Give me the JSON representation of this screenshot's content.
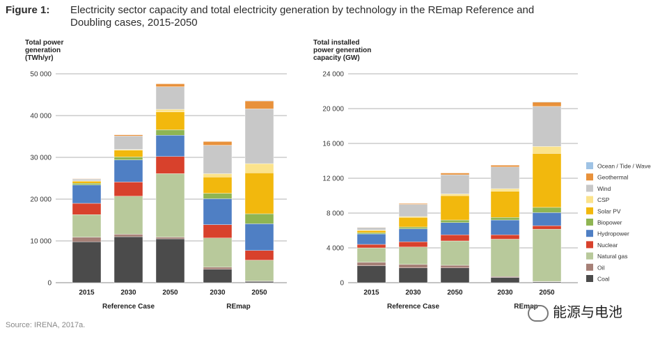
{
  "figure": {
    "label": "Figure 1:",
    "title": "Electricity sector capacity and total electricity generation by technology in the REmap Reference and Doubling cases, 2015-2050",
    "source": "Source: IRENA, 2017a."
  },
  "watermark": "能源与电池",
  "legend": [
    {
      "name": "Ocean / Tide / Wave",
      "color": "#9fc3e5"
    },
    {
      "name": "Geothermal",
      "color": "#e8913b"
    },
    {
      "name": "Wind",
      "color": "#c8c8c8"
    },
    {
      "name": "CSP",
      "color": "#fbe38c"
    },
    {
      "name": "Solar PV",
      "color": "#f2b80d"
    },
    {
      "name": "Biopower",
      "color": "#8fb553"
    },
    {
      "name": "Hydropower",
      "color": "#4f7fc4"
    },
    {
      "name": "Nuclear",
      "color": "#d8412c"
    },
    {
      "name": "Natural gas",
      "color": "#b8c99b"
    },
    {
      "name": "Oil",
      "color": "#a68077"
    },
    {
      "name": "Coal",
      "color": "#4b4b4b"
    }
  ],
  "chart_data": [
    {
      "type": "bar",
      "stacked": true,
      "ylabel": "Total power generation (TWh/yr)",
      "ylabel_lines": [
        "Total power",
        "generation",
        "(TWh/yr)"
      ],
      "ylim": [
        0,
        50000
      ],
      "yticks": [
        0,
        10000,
        20000,
        30000,
        40000,
        50000
      ],
      "ytick_labels": [
        "0",
        "10 000",
        "20 000",
        "30 000",
        "40 000",
        "50 000"
      ],
      "grid": true,
      "categories": [
        "2015",
        "2030",
        "2050",
        "2030",
        "2050"
      ],
      "groups": [
        {
          "name": "Reference Case",
          "categories": [
            0,
            1,
            2
          ]
        },
        {
          "name": "REmap",
          "categories": [
            3,
            4
          ]
        }
      ],
      "series": [
        {
          "name": "Coal",
          "values": [
            9800,
            11000,
            10500,
            3200,
            300
          ]
        },
        {
          "name": "Oil",
          "values": [
            1100,
            600,
            400,
            500,
            100
          ]
        },
        {
          "name": "Natural gas",
          "values": [
            5400,
            9100,
            15200,
            7000,
            5000
          ]
        },
        {
          "name": "Nuclear",
          "values": [
            2700,
            3400,
            4100,
            3200,
            2300
          ]
        },
        {
          "name": "Hydropower",
          "values": [
            4400,
            5300,
            5100,
            6200,
            6400
          ]
        },
        {
          "name": "Biopower",
          "values": [
            400,
            700,
            1300,
            1300,
            2400
          ]
        },
        {
          "name": "Solar PV",
          "values": [
            500,
            1600,
            4300,
            3900,
            9800
          ]
        },
        {
          "name": "CSP",
          "values": [
            100,
            200,
            600,
            800,
            2200
          ]
        },
        {
          "name": "Wind",
          "values": [
            400,
            3200,
            5400,
            6800,
            13100
          ]
        },
        {
          "name": "Geothermal",
          "values": [
            100,
            300,
            700,
            900,
            1900
          ]
        },
        {
          "name": "Ocean / Tide / Wave",
          "values": [
            0,
            0,
            0,
            0,
            100
          ]
        }
      ]
    },
    {
      "type": "bar",
      "stacked": true,
      "ylabel": "Total installed power generation capacity (GW)",
      "ylabel_lines": [
        "Total installed",
        "power generation",
        "capacity (GW)"
      ],
      "ylim": [
        0,
        24000
      ],
      "yticks": [
        0,
        4000,
        8000,
        12000,
        16000,
        20000,
        24000
      ],
      "ytick_labels": [
        "0",
        "4 000",
        "8 000",
        "12 000",
        "16 000",
        "20 000",
        "24 000"
      ],
      "grid": true,
      "categories": [
        "2015",
        "2030",
        "2050",
        "2030",
        "2050"
      ],
      "groups": [
        {
          "name": "Reference Case",
          "categories": [
            0,
            1,
            2
          ]
        },
        {
          "name": "REmap",
          "categories": [
            3,
            4
          ]
        }
      ],
      "series": [
        {
          "name": "Coal",
          "values": [
            1950,
            1700,
            1700,
            600,
            100
          ]
        },
        {
          "name": "Oil",
          "values": [
            400,
            400,
            300,
            100,
            50
          ]
        },
        {
          "name": "Natural gas",
          "values": [
            1650,
            2000,
            2800,
            4300,
            6000
          ]
        },
        {
          "name": "Nuclear",
          "values": [
            400,
            600,
            700,
            500,
            400
          ]
        },
        {
          "name": "Hydropower",
          "values": [
            1200,
            1500,
            1400,
            1700,
            1500
          ]
        },
        {
          "name": "Biopower",
          "values": [
            150,
            200,
            300,
            300,
            600
          ]
        },
        {
          "name": "Solar PV",
          "values": [
            250,
            1100,
            2800,
            3000,
            6200
          ]
        },
        {
          "name": "CSP",
          "values": [
            50,
            100,
            200,
            300,
            800
          ]
        },
        {
          "name": "Wind",
          "values": [
            300,
            1400,
            2200,
            2500,
            4600
          ]
        },
        {
          "name": "Geothermal",
          "values": [
            30,
            100,
            200,
            200,
            500
          ]
        },
        {
          "name": "Ocean / Tide / Wave",
          "values": [
            0,
            0,
            0,
            0,
            50
          ]
        }
      ]
    }
  ]
}
